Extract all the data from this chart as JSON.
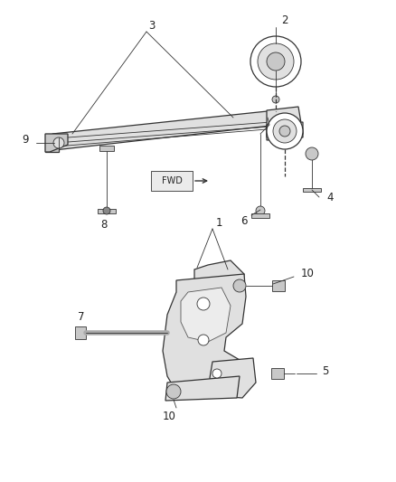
{
  "background_color": "#ffffff",
  "line_color": "#333333",
  "gray_fill": "#c8c8c8",
  "light_gray": "#e0e0e0",
  "dark_gray": "#888888",
  "label_fontsize": 8.5,
  "figsize": [
    4.38,
    5.33
  ],
  "dpi": 100,
  "top_panel": {
    "ymin": 0.52,
    "ymax": 1.0
  },
  "bottom_panel": {
    "ymin": 0.0,
    "ymax": 0.5
  }
}
